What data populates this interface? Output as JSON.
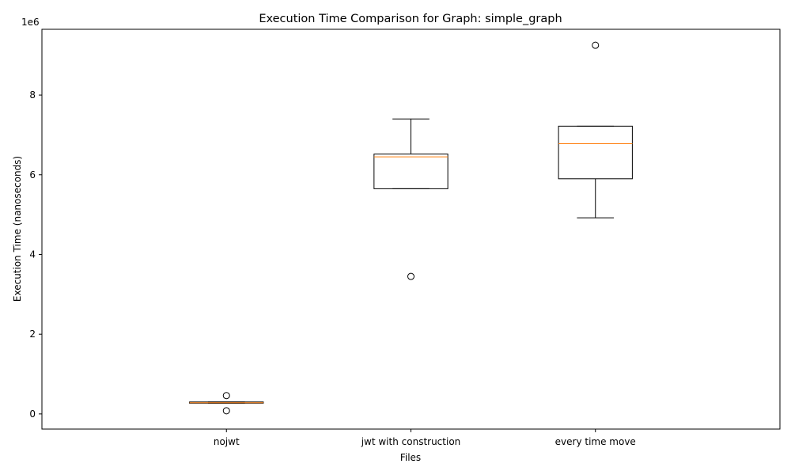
{
  "chart_data": {
    "type": "box",
    "title": "Execution Time Comparison for Graph: simple_graph",
    "xlabel": "Files",
    "ylabel": "Execution Time (nanoseconds)",
    "y_offset_label": "1e6",
    "y_scale_factor": 1000000,
    "ylim": [
      -380000,
      9650000
    ],
    "yticks": [
      0,
      2,
      4,
      6,
      8
    ],
    "grid": false,
    "colors": {
      "box": "#000000",
      "median": "#ff7f0e",
      "flier": "#000000"
    },
    "categories": [
      "nojwt",
      "jwt with construction",
      "every time move"
    ],
    "boxes": [
      {
        "name": "nojwt",
        "whisker_low": 270000,
        "q1": 270000,
        "median": 280000,
        "q3": 300000,
        "whisker_high": 300000,
        "fliers": [
          80000,
          460000
        ]
      },
      {
        "name": "jwt with construction",
        "whisker_low": 5650000,
        "q1": 5650000,
        "median": 6450000,
        "q3": 6520000,
        "whisker_high": 7400000,
        "fliers": [
          3450000
        ]
      },
      {
        "name": "every time move",
        "whisker_low": 4920000,
        "q1": 5900000,
        "median": 6780000,
        "q3": 7220000,
        "whisker_high": 7220000,
        "fliers": [
          9250000
        ]
      }
    ]
  }
}
